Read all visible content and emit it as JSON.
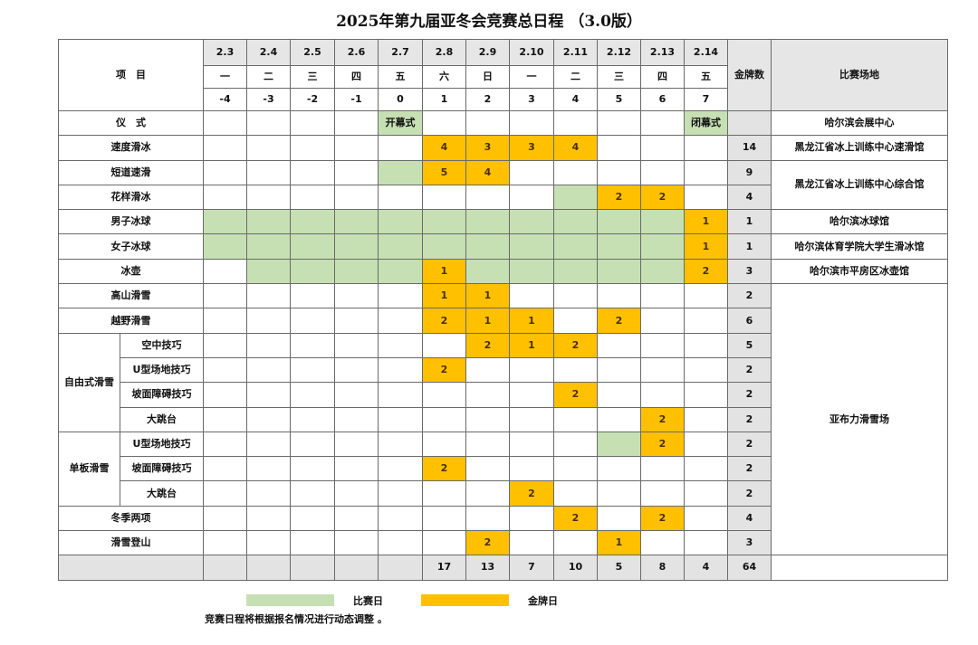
{
  "title": "2025年第九届亚冬会竞赛总日程 （3.0版）",
  "header": {
    "item_label": "项　目",
    "medal_label": "金牌数",
    "venue_label": "比赛场地",
    "dates": [
      "2.3",
      "2.4",
      "2.5",
      "2.6",
      "2.7",
      "2.8",
      "2.9",
      "2.10",
      "2.11",
      "2.12",
      "2.13",
      "2.14"
    ],
    "weekdays": [
      "一",
      "二",
      "三",
      "四",
      "五",
      "六",
      "日",
      "一",
      "二",
      "三",
      "四",
      "五"
    ],
    "day_numbers": [
      "-4",
      "-3",
      "-2",
      "-1",
      "0",
      "1",
      "2",
      "3",
      "4",
      "5",
      "6",
      "7"
    ]
  },
  "groups": {
    "freestyle": "自由式滑雪",
    "snowboard": "单板滑雪"
  },
  "rows": [
    {
      "event": "仪　式",
      "cells": [
        "",
        "",
        "",
        "",
        {
          "race": "开幕式"
        },
        "",
        "",
        "",
        "",
        "",
        "",
        {
          "race": "闭幕式"
        }
      ],
      "medals": ""
    },
    {
      "event": "速度滑冰",
      "cells": [
        "",
        "",
        "",
        "",
        "",
        4,
        3,
        3,
        4,
        "",
        "",
        ""
      ],
      "medals": "14"
    },
    {
      "event": "短道速滑",
      "cells": [
        "",
        "",
        "",
        "",
        "g",
        5,
        4,
        "",
        "",
        "",
        "",
        ""
      ],
      "medals": "9"
    },
    {
      "event": "花样滑冰",
      "cells": [
        "",
        "",
        "",
        "",
        "",
        "",
        "",
        "",
        "g",
        2,
        2,
        ""
      ],
      "medals": "4"
    },
    {
      "event": "男子冰球",
      "cells": [
        "g",
        "g",
        "g",
        "g",
        "g",
        "g",
        "g",
        "g",
        "g",
        "g",
        "g",
        1
      ],
      "medals": "1"
    },
    {
      "event": "女子冰球",
      "cells": [
        "g",
        "g",
        "g",
        "g",
        "g",
        "g",
        "g",
        "g",
        "g",
        "g",
        "g",
        1
      ],
      "medals": "1"
    },
    {
      "event": "冰壶",
      "cells": [
        "",
        "g",
        "g",
        "g",
        "g",
        1,
        "g",
        "g",
        "g",
        "g",
        "g",
        2
      ],
      "medals": "3"
    },
    {
      "event": "高山滑雪",
      "cells": [
        "",
        "",
        "",
        "",
        "",
        1,
        1,
        "",
        "",
        "",
        "",
        ""
      ],
      "medals": "2"
    },
    {
      "event": "越野滑雪",
      "cells": [
        "",
        "",
        "",
        "",
        "",
        2,
        1,
        1,
        "",
        2,
        "",
        ""
      ],
      "medals": "6"
    },
    {
      "group": "freestyle",
      "event": "空中技巧",
      "cells": [
        "",
        "",
        "",
        "",
        "",
        "",
        2,
        1,
        2,
        "",
        "",
        ""
      ],
      "medals": "5"
    },
    {
      "group": "freestyle",
      "event": "U型场地技巧",
      "cells": [
        "",
        "",
        "",
        "",
        "",
        2,
        "",
        "",
        "",
        "",
        "",
        ""
      ],
      "medals": "2"
    },
    {
      "group": "freestyle",
      "event": "坡面障碍技巧",
      "cells": [
        "",
        "",
        "",
        "",
        "",
        "",
        "",
        "",
        2,
        "",
        "",
        ""
      ],
      "medals": "2"
    },
    {
      "group": "freestyle",
      "event": "大跳台",
      "cells": [
        "",
        "",
        "",
        "",
        "",
        "",
        "",
        "",
        "",
        "",
        2,
        ""
      ],
      "medals": "2"
    },
    {
      "group": "snowboard",
      "event": "U型场地技巧",
      "cells": [
        "",
        "",
        "",
        "",
        "",
        "",
        "",
        "",
        "",
        "g",
        2,
        ""
      ],
      "medals": "2"
    },
    {
      "group": "snowboard",
      "event": "坡面障碍技巧",
      "cells": [
        "",
        "",
        "",
        "",
        "",
        2,
        "",
        "",
        "",
        "",
        "",
        ""
      ],
      "medals": "2"
    },
    {
      "group": "snowboard",
      "event": "大跳台",
      "cells": [
        "",
        "",
        "",
        "",
        "",
        "",
        "",
        2,
        "",
        "",
        "",
        ""
      ],
      "medals": "2"
    },
    {
      "event": "冬季两项",
      "cells": [
        "",
        "",
        "",
        "",
        "",
        "",
        "",
        "",
        2,
        "",
        2,
        ""
      ],
      "medals": "4"
    },
    {
      "event": "滑雪登山",
      "cells": [
        "",
        "",
        "",
        "",
        "",
        "",
        2,
        "",
        "",
        1,
        "",
        ""
      ],
      "medals": "3"
    }
  ],
  "venues": [
    {
      "name": "哈尔滨会展中心",
      "rows": 1
    },
    {
      "name": "黑龙江省冰上训练中心速滑馆",
      "rows": 1
    },
    {
      "name": "黑龙江省冰上训练中心综合馆",
      "rows": 2
    },
    {
      "name": "哈尔滨冰球馆",
      "rows": 1
    },
    {
      "name": "哈尔滨体育学院大学生滑冰馆",
      "rows": 1
    },
    {
      "name": "哈尔滨市平房区冰壶馆",
      "rows": 1
    },
    {
      "name": "亚布力滑雪场",
      "rows": 11
    }
  ],
  "totals": {
    "daily": [
      "",
      "",
      "",
      "",
      "",
      "17",
      "13",
      "7",
      "10",
      "5",
      "8",
      "4"
    ],
    "medals": "64"
  },
  "legend": {
    "race_day": "比赛日",
    "gold_day": "金牌日"
  },
  "note": "竞赛日程将根据报名情况进行动态调整 。",
  "colors": {
    "race_day": "#c6e0b4",
    "gold_day": "#ffc000",
    "header": "#e7e6e6"
  }
}
